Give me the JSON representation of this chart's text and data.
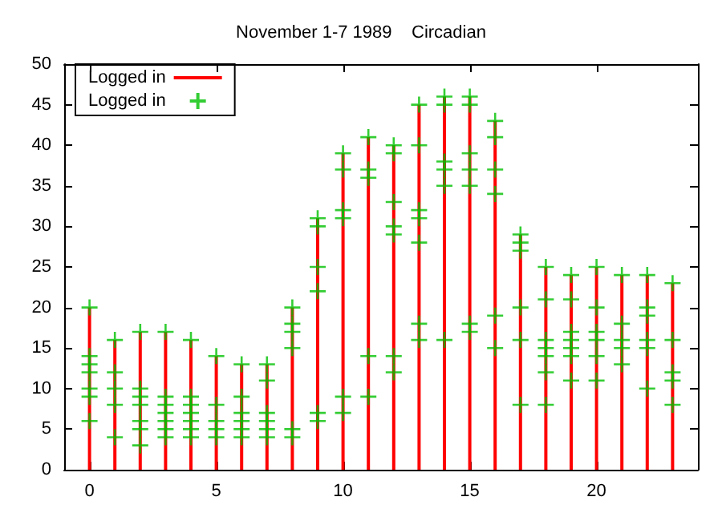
{
  "chart_data": {
    "type": "bar",
    "title": "November 1-7 1989    Circadian",
    "xlim": [
      -1,
      24
    ],
    "xticks": [
      0,
      5,
      10,
      15,
      20
    ],
    "ylim": [
      0,
      50
    ],
    "yticks": [
      0,
      5,
      10,
      15,
      20,
      25,
      30,
      35,
      40,
      45,
      50
    ],
    "grid": false,
    "legend": "top left",
    "series": [
      {
        "name": "Logged in",
        "color": "#ff0000",
        "x": [
          0,
          1,
          2,
          3,
          4,
          5,
          6,
          7,
          8,
          9,
          10,
          11,
          12,
          13,
          14,
          15,
          16,
          17,
          18,
          19,
          20,
          21,
          22,
          23
        ],
        "values": [
          20,
          16,
          17,
          17,
          16,
          14,
          13,
          13,
          20,
          31,
          39,
          41,
          40,
          45,
          46,
          46,
          43,
          29,
          25,
          24,
          25,
          24,
          24,
          23
        ]
      },
      {
        "name": "Logged in",
        "type": "scatter",
        "marker": "cross",
        "color": "#00c000",
        "x": [
          0,
          0,
          0,
          0,
          0,
          0,
          0,
          1,
          1,
          1,
          1,
          1,
          2,
          2,
          2,
          2,
          2,
          2,
          2,
          3,
          3,
          3,
          3,
          3,
          3,
          3,
          4,
          4,
          4,
          4,
          4,
          4,
          4,
          5,
          5,
          5,
          5,
          5,
          6,
          6,
          6,
          6,
          6,
          6,
          7,
          7,
          7,
          7,
          7,
          7,
          8,
          8,
          8,
          8,
          8,
          8,
          9,
          9,
          9,
          9,
          9,
          9,
          10,
          10,
          10,
          10,
          10,
          10,
          11,
          11,
          11,
          11,
          11,
          12,
          12,
          12,
          12,
          12,
          12,
          12,
          13,
          13,
          13,
          13,
          13,
          13,
          13,
          14,
          14,
          14,
          14,
          14,
          14,
          15,
          15,
          15,
          15,
          15,
          15,
          15,
          16,
          16,
          16,
          16,
          16,
          16,
          17,
          17,
          17,
          17,
          17,
          17,
          18,
          18,
          18,
          18,
          18,
          18,
          18,
          19,
          19,
          19,
          19,
          19,
          19,
          19,
          20,
          20,
          20,
          20,
          20,
          20,
          21,
          21,
          21,
          21,
          21,
          22,
          22,
          22,
          22,
          22,
          22,
          23,
          23,
          23,
          23,
          23
        ],
        "values": [
          20,
          14,
          13,
          12,
          10,
          9,
          6,
          16,
          12,
          10,
          8,
          4,
          17,
          10,
          9,
          8,
          6,
          5,
          3,
          17,
          9,
          8,
          7,
          6,
          5,
          4,
          16,
          9,
          8,
          7,
          6,
          5,
          4,
          14,
          8,
          6,
          5,
          4,
          13,
          9,
          7,
          6,
          5,
          4,
          13,
          11,
          7,
          6,
          5,
          4,
          20,
          18,
          17,
          15,
          5,
          4,
          31,
          30,
          25,
          22,
          7,
          6,
          39,
          37,
          32,
          31,
          9,
          7,
          41,
          37,
          36,
          14,
          9,
          40,
          39,
          33,
          30,
          29,
          14,
          12,
          45,
          40,
          32,
          31,
          28,
          18,
          16,
          46,
          45,
          38,
          37,
          35,
          16,
          46,
          45,
          39,
          37,
          35,
          18,
          17,
          43,
          41,
          37,
          34,
          19,
          15,
          29,
          28,
          27,
          20,
          16,
          8,
          25,
          21,
          16,
          15,
          14,
          12,
          8,
          24,
          21,
          17,
          16,
          15,
          14,
          11,
          25,
          20,
          17,
          16,
          14,
          11,
          24,
          18,
          16,
          15,
          13,
          24,
          20,
          19,
          16,
          15,
          10,
          23,
          16,
          12,
          11,
          8
        ]
      }
    ]
  }
}
